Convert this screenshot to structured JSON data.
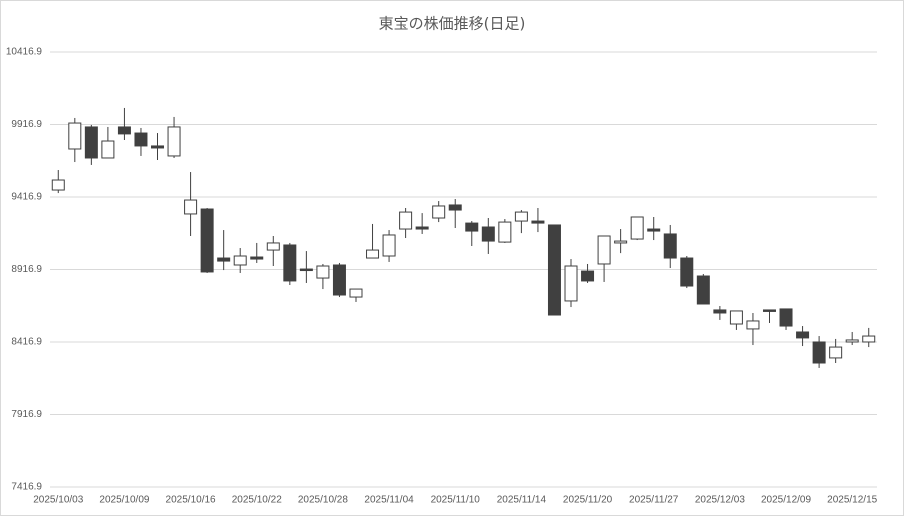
{
  "chart_data": {
    "type": "candlestick",
    "title": "東宝の株価推移(日足)",
    "categories": [
      "2025/10/03",
      null,
      null,
      null,
      "2025/10/09",
      null,
      null,
      null,
      "2025/10/16",
      null,
      null,
      null,
      "2025/10/22",
      null,
      null,
      null,
      "2025/10/28",
      null,
      null,
      null,
      "2025/11/04",
      null,
      null,
      null,
      "2025/11/10",
      null,
      null,
      null,
      "2025/11/14",
      null,
      null,
      null,
      "2025/11/20",
      null,
      null,
      null,
      "2025/11/27",
      null,
      null,
      null,
      "2025/12/03",
      null,
      null,
      null,
      "2025/12/09",
      null,
      null,
      null,
      "2025/12/15",
      null
    ],
    "open": [
      9465,
      9748,
      9900,
      9686,
      9900,
      9858,
      9769,
      9700,
      9300,
      9334,
      8996,
      8948,
      9003,
      9051,
      9086,
      8920,
      8858,
      8948,
      8727,
      8996,
      9010,
      9196,
      9210,
      9272,
      9362,
      9237,
      9210,
      9106,
      9251,
      9251,
      9224,
      8700,
      8906,
      8955,
      9100,
      9127,
      9196,
      9162,
      8996,
      8872,
      8638,
      8541,
      8507,
      8638,
      8645,
      8486,
      8417,
      8307,
      8417,
      8417
    ],
    "high": [
      9603,
      9962,
      9914,
      9900,
      10031,
      9893,
      9858,
      9969,
      9589,
      9341,
      9189,
      9065,
      9100,
      9148,
      9100,
      9044,
      8955,
      8962,
      8782,
      9231,
      9189,
      9341,
      9306,
      9389,
      9403,
      9251,
      9272,
      9265,
      9327,
      9341,
      9224,
      8989,
      8955,
      9148,
      9196,
      9279,
      9279,
      9224,
      9010,
      8886,
      8665,
      8631,
      8617,
      8638,
      8645,
      8527,
      8458,
      8438,
      8486,
      8514
    ],
    "low": [
      9444,
      9658,
      9638,
      9686,
      9810,
      9700,
      9672,
      9686,
      9148,
      8893,
      8913,
      8893,
      8962,
      8941,
      8810,
      8824,
      8782,
      8727,
      8693,
      8996,
      8969,
      9134,
      9162,
      9244,
      9203,
      9079,
      9024,
      9100,
      9168,
      9175,
      8603,
      8658,
      8824,
      8831,
      9030,
      9120,
      9120,
      8927,
      8789,
      8679,
      8569,
      8500,
      8396,
      8548,
      8500,
      8389,
      8238,
      8272,
      8396,
      8382
    ],
    "close": [
      9534,
      9927,
      9686,
      9803,
      9852,
      9769,
      9755,
      9900,
      9396,
      8900,
      8975,
      9010,
      8989,
      9100,
      8838,
      8913,
      8941,
      8741,
      8782,
      9051,
      9155,
      9313,
      9196,
      9355,
      9327,
      9182,
      9113,
      9244,
      9313,
      9237,
      8603,
      8941,
      8838,
      9148,
      9113,
      9279,
      9182,
      8996,
      8803,
      8679,
      8617,
      8631,
      8562,
      8631,
      8527,
      8445,
      8272,
      8382,
      8431,
      8458
    ],
    "up_color": "#ffffff",
    "down_color": "#404040",
    "edge_color": "#404040",
    "ylim": [
      7416.9,
      10416.9
    ],
    "yticks": [
      7416.9,
      7916.9,
      8416.9,
      8916.9,
      9416.9,
      9916.9,
      10416.9
    ],
    "grid": true
  }
}
